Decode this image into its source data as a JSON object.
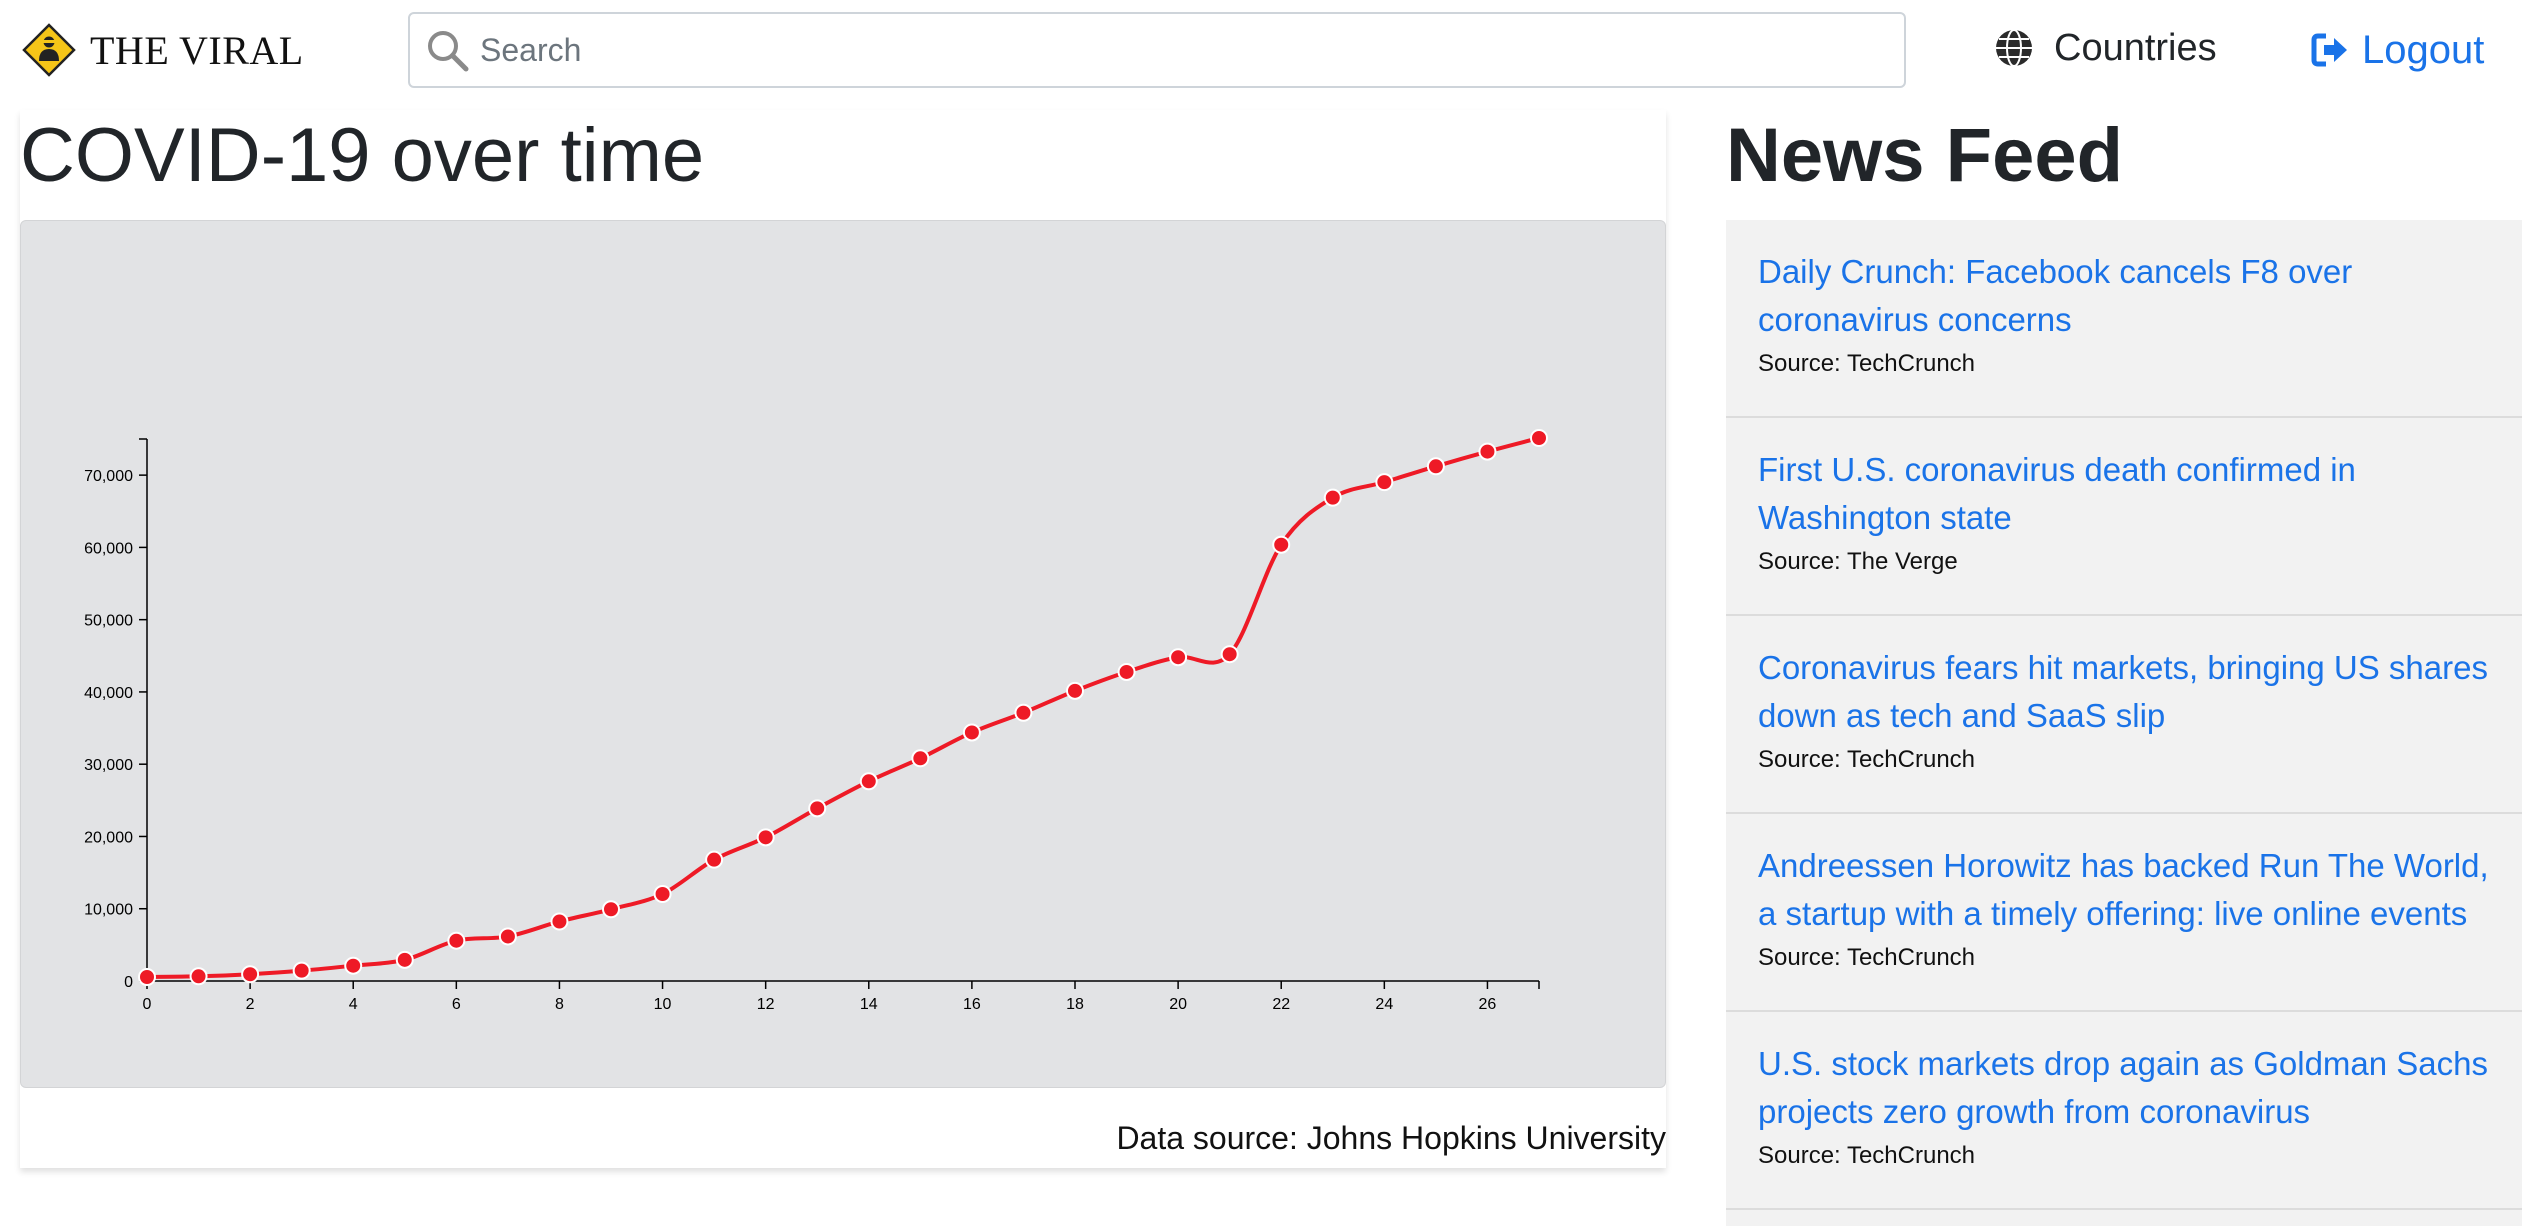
{
  "brand": {
    "name": "THE VIRAL",
    "logo_icon": "warning-person-icon"
  },
  "search": {
    "placeholder": "Search",
    "value": ""
  },
  "nav": {
    "countries_label": "Countries",
    "logout_label": "Logout",
    "accent": "#1a73e8"
  },
  "chart_section": {
    "title": "COVID-19 over time",
    "source": "Data source: Johns Hopkins University"
  },
  "chart_data": {
    "type": "line",
    "title": "COVID-19 over time",
    "xlabel": "",
    "ylabel": "",
    "xlim": [
      0,
      27
    ],
    "ylim": [
      0,
      75000
    ],
    "x_ticks": [
      0,
      2,
      4,
      6,
      8,
      10,
      12,
      14,
      16,
      18,
      20,
      22,
      24,
      26
    ],
    "y_ticks": [
      0,
      10000,
      20000,
      30000,
      40000,
      50000,
      60000,
      70000
    ],
    "x_tick_labels": [
      "0",
      "2",
      "4",
      "6",
      "8",
      "10",
      "12",
      "14",
      "16",
      "18",
      "20",
      "22",
      "24",
      "26"
    ],
    "y_tick_labels": [
      "0",
      "10,000",
      "20,000",
      "30,000",
      "40,000",
      "50,000",
      "60,000",
      "70,000"
    ],
    "series": [
      {
        "color": "#ee1a26",
        "x": [
          0,
          1,
          2,
          3,
          4,
          5,
          6,
          7,
          8,
          9,
          10,
          11,
          12,
          13,
          14,
          15,
          16,
          17,
          18,
          19,
          20,
          21,
          22,
          23,
          24,
          25,
          26,
          27
        ],
        "y": [
          555,
          654,
          941,
          1434,
          2118,
          2927,
          5578,
          6166,
          8235,
          9927,
          12038,
          16787,
          19881,
          23892,
          27636,
          30818,
          34392,
          37121,
          40151,
          42763,
          44803,
          45222,
          60370,
          66887,
          69032,
          71226,
          73260,
          75138
        ]
      }
    ],
    "grid": false,
    "legend": "none"
  },
  "news": {
    "title": "News Feed",
    "items": [
      {
        "headline": "Daily Crunch: Facebook cancels F8 over coronavirus concerns",
        "source": "Source: TechCrunch"
      },
      {
        "headline": "First U.S. coronavirus death confirmed in Washington state",
        "source": "Source: The Verge"
      },
      {
        "headline": "Coronavirus fears hit markets, bringing US shares down as tech and SaaS slip",
        "source": "Source: TechCrunch"
      },
      {
        "headline": "Andreessen Horowitz has backed Run The World, a startup with a timely offering: live online events",
        "source": "Source: TechCrunch"
      },
      {
        "headline": "U.S. stock markets drop again as Goldman Sachs projects zero growth from coronavirus",
        "source": "Source: TechCrunch"
      }
    ]
  }
}
